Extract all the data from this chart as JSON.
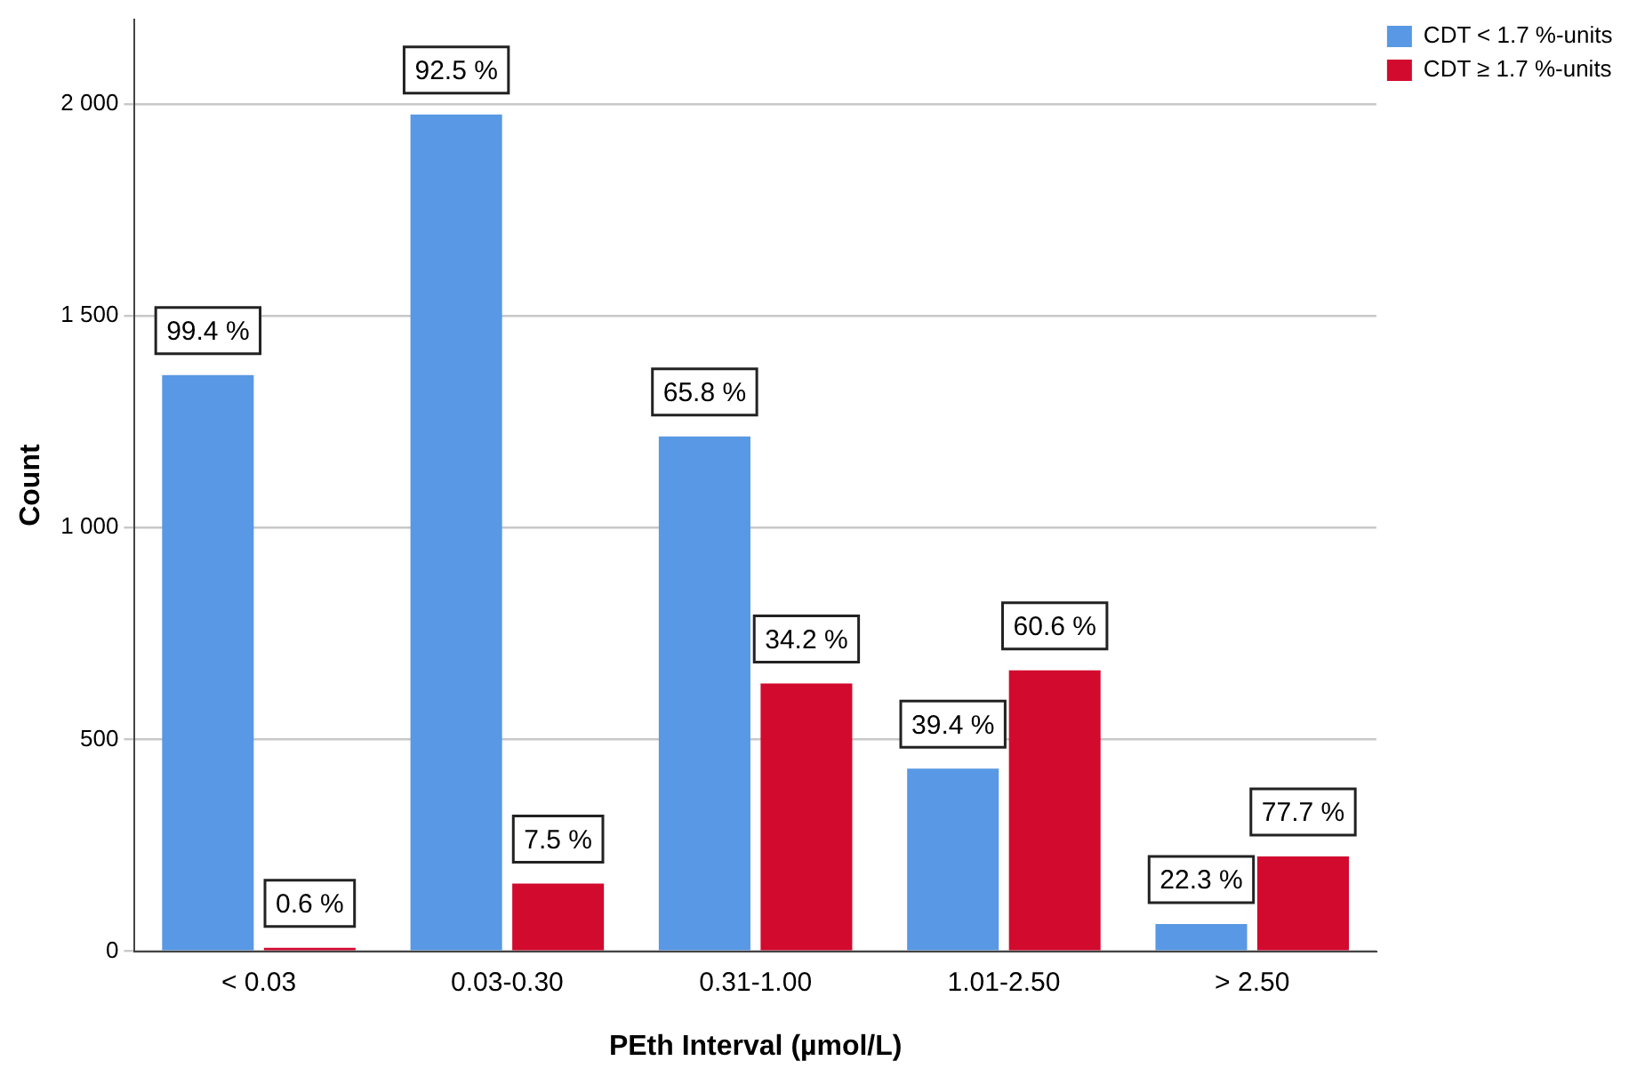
{
  "chart_data": {
    "type": "bar",
    "xlabel": "PEth Interval (µmol/L)",
    "ylabel": "Count",
    "categories": [
      "< 0.03",
      "0.03-0.30",
      "0.31-1.00",
      "1.01-2.50",
      "> 2.50"
    ],
    "series": [
      {
        "name": "CDT < 1.7 %-units",
        "color": "#5898e4",
        "values": [
          1360,
          1975,
          1215,
          431,
          64
        ]
      },
      {
        "name": "CDT ≥ 1.7 %-units",
        "color": "#d10a2e",
        "values": [
          8,
          160,
          632,
          663,
          224
        ]
      }
    ],
    "annotations": [
      {
        "text": "99.4 %",
        "x": "< 0.03",
        "y": 1360
      },
      {
        "text": "0.6 %",
        "x": "< 0.03",
        "y": 8
      },
      {
        "text": "92.5 %",
        "x": "0.03-0.30",
        "y": 1975
      },
      {
        "text": "7.5 %",
        "x": "0.03-0.30",
        "y": 160
      },
      {
        "text": "65.8 %",
        "x": "0.31-1.00",
        "y": 1215
      },
      {
        "text": "34.2 %",
        "x": "0.31-1.00",
        "y": 632
      },
      {
        "text": "39.4 %",
        "x": "1.01-2.50",
        "y": 431
      },
      {
        "text": "60.6 %",
        "x": "1.01-2.50",
        "y": 663
      },
      {
        "text": "22.3 %",
        "x": "> 2.50",
        "y": 64
      },
      {
        "text": "77.7 %",
        "x": "> 2.50",
        "y": 224
      }
    ],
    "ylim": [
      0,
      2200
    ],
    "yticks": [
      0,
      {
        "value": 500,
        "label": "500"
      },
      {
        "value": 1000,
        "label": "1 000"
      },
      {
        "value": 1500,
        "label": "1 500"
      },
      {
        "value": 2000,
        "label": "2 000"
      }
    ],
    "grid": "y",
    "legend": "top right"
  }
}
